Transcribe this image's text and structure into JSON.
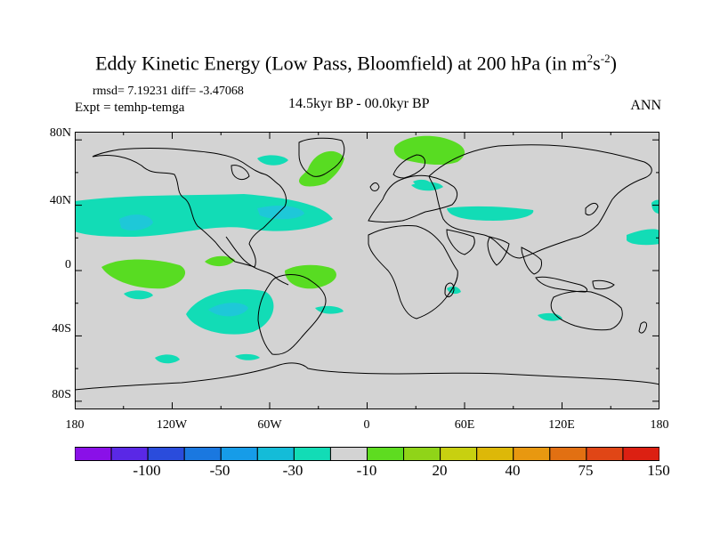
{
  "title": {
    "main": "Eddy Kinetic Energy (Low Pass, Bloomfield) at 200 hPa (in m",
    "sup1": "2",
    "mid": "s",
    "sup2": "-2",
    "end": ")"
  },
  "stats": "rmsd= 7.19231 diff= -3.47068",
  "expt": "Expt = temhp-temga",
  "center_label": "14.5kyr BP - 00.0kyr BP",
  "season": "ANN",
  "colors": {
    "background": "#d3d3d3",
    "coast": "#000000",
    "neg_light": "#12dcb6",
    "neg_mid": "#1ec8d8",
    "pos_light": "#58dc22"
  },
  "chart_data": {
    "type": "heatmap",
    "projection": "cylindrical-equidistant",
    "x_range": [
      -180,
      180
    ],
    "y_range": [
      -90,
      90
    ],
    "x_ticks": [
      "180",
      "120W",
      "60W",
      "0",
      "60E",
      "120E",
      "180"
    ],
    "y_ticks": [
      "80N",
      "40N",
      "0",
      "40S",
      "80S"
    ],
    "colorbar": {
      "colors": [
        "#8a10e8",
        "#5a28e6",
        "#2a4cdc",
        "#1a78e0",
        "#169ce8",
        "#14bcd8",
        "#12dcb6",
        "#d3d3d3",
        "#5edc20",
        "#90d418",
        "#c8d010",
        "#ddb808",
        "#e89810",
        "#e27012",
        "#e04616",
        "#dc2012"
      ],
      "labels": [
        "-100",
        "-50",
        "-30",
        "-10",
        "20",
        "40",
        "75",
        "150"
      ],
      "label_positions": [
        2,
        4,
        6,
        8,
        10,
        12,
        14,
        16
      ]
    },
    "regions": [
      {
        "name": "north-pacific-atlantic-band",
        "sign": "negative",
        "level": -10,
        "lon_range": [
          -180,
          -10
        ],
        "lat_range": [
          24,
          44
        ]
      },
      {
        "name": "north-pacific-core",
        "sign": "negative",
        "level": -20,
        "lon_range": [
          -150,
          -120
        ],
        "lat_range": [
          30,
          38
        ]
      },
      {
        "name": "central-asia-band",
        "sign": "negative",
        "level": -10,
        "lon_range": [
          50,
          105
        ],
        "lat_range": [
          33,
          40
        ]
      },
      {
        "name": "north-pacific-east",
        "sign": "negative",
        "level": -10,
        "lon_range": [
          150,
          180
        ],
        "lat_range": [
          22,
          30
        ]
      },
      {
        "name": "south-pacific-east",
        "sign": "negative",
        "level": -10,
        "lon_range": [
          -110,
          -60
        ],
        "lat_range": [
          -45,
          -20
        ]
      },
      {
        "name": "south-pacific-core",
        "sign": "negative",
        "level": -20,
        "lon_range": [
          -100,
          -80
        ],
        "lat_range": [
          -38,
          -28
        ]
      },
      {
        "name": "greenland",
        "sign": "positive",
        "level": 20,
        "lon_range": [
          -45,
          -25
        ],
        "lat_range": [
          52,
          72
        ]
      },
      {
        "name": "northern-siberia",
        "sign": "positive",
        "level": 20,
        "lon_range": [
          30,
          75
        ],
        "lat_range": [
          68,
          82
        ]
      },
      {
        "name": "tropical-pacific",
        "sign": "positive",
        "level": 20,
        "lon_range": [
          -165,
          -115
        ],
        "lat_range": [
          -12,
          2
        ]
      },
      {
        "name": "tropical-atlantic",
        "sign": "positive",
        "level": 20,
        "lon_range": [
          -45,
          -5
        ],
        "lat_range": [
          -20,
          -2
        ]
      }
    ]
  }
}
